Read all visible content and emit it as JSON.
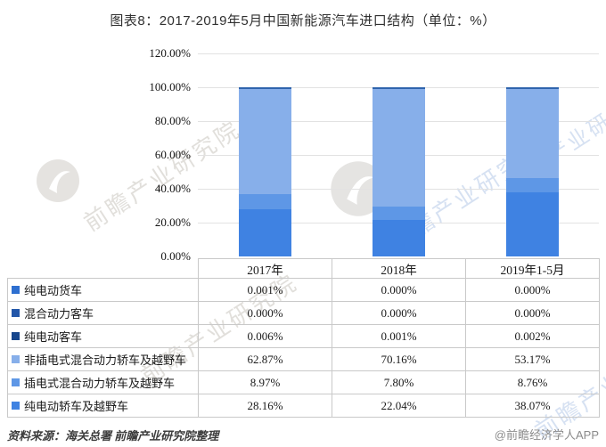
{
  "title": "图表8：2017-2019年5月中国新能源汽车进口结构（单位：%）",
  "chart_data": {
    "type": "bar",
    "stacked": true,
    "categories": [
      "2017年",
      "2018年",
      "2019年1-5月"
    ],
    "series": [
      {
        "name": "纯电动货车",
        "color": "#2e6fd0",
        "values": [
          0.001,
          0.0,
          0.0
        ],
        "labels": [
          "0.001%",
          "0.000%",
          "0.000%"
        ]
      },
      {
        "name": "混合动力客车",
        "color": "#2357a9",
        "values": [
          0.0,
          0.0,
          0.0
        ],
        "labels": [
          "0.000%",
          "0.000%",
          "0.000%"
        ]
      },
      {
        "name": "纯电动客车",
        "color": "#17468c",
        "values": [
          0.006,
          0.001,
          0.002
        ],
        "labels": [
          "0.006%",
          "0.001%",
          "0.002%"
        ]
      },
      {
        "name": "非插电式混合动力轿车及越野车",
        "color": "#87afea",
        "values": [
          62.87,
          70.16,
          53.17
        ],
        "labels": [
          "62.87%",
          "70.16%",
          "53.17%"
        ]
      },
      {
        "name": "插电式混合动力轿车及越野车",
        "color": "#5e97e6",
        "values": [
          8.97,
          7.8,
          8.76
        ],
        "labels": [
          "8.97%",
          "7.80%",
          "8.76%"
        ]
      },
      {
        "name": "纯电动轿车及越野车",
        "color": "#3f82e2",
        "values": [
          28.16,
          22.04,
          38.07
        ],
        "labels": [
          "28.16%",
          "22.04%",
          "38.07%"
        ]
      }
    ],
    "yticks": [
      "120.00%",
      "100.00%",
      "80.00%",
      "60.00%",
      "40.00%",
      "20.00%",
      "0.00%"
    ],
    "ylim": [
      0,
      120
    ],
    "grid": true,
    "legend_position": "table-left-column",
    "bar_top_edge_color": "#2f64ad",
    "gridline_color": "#e2e2e2"
  },
  "footer": {
    "source": "资料来源：海关总署  前瞻产业研究院整理",
    "brand": "@前瞻经济学人APP"
  },
  "watermark": {
    "text": "前瞻产业研究院",
    "logo_name": "qianzhan-logo"
  }
}
